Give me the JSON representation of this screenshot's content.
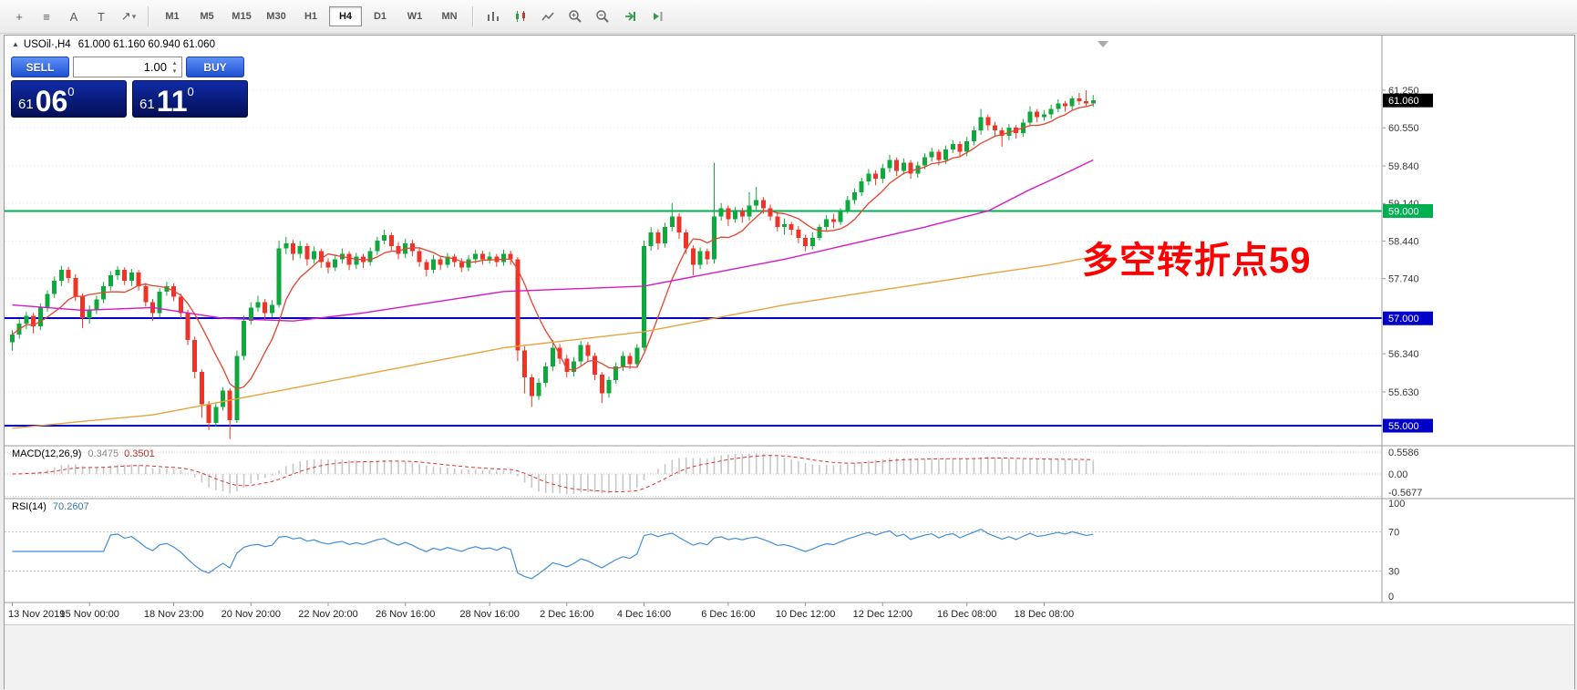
{
  "toolbar": {
    "left_icons": [
      {
        "name": "draw-tools-icon",
        "glyph": "+"
      },
      {
        "name": "objects-list-icon",
        "glyph": "≡"
      },
      {
        "name": "text-tool-icon",
        "glyph": "A"
      },
      {
        "name": "label-tool-icon",
        "glyph": "T"
      },
      {
        "name": "arrow-tools-icon",
        "glyph": "↗"
      }
    ],
    "timeframes": [
      {
        "label": "M1"
      },
      {
        "label": "M5"
      },
      {
        "label": "M15"
      },
      {
        "label": "M30"
      },
      {
        "label": "H1"
      },
      {
        "label": "H4",
        "active": true
      },
      {
        "label": "D1"
      },
      {
        "label": "W1"
      },
      {
        "label": "MN"
      }
    ],
    "right_icons": [
      "bar-chart",
      "candlesticks",
      "line-chart",
      "zoom-in",
      "zoom-out",
      "auto-scroll",
      "chart-shift"
    ]
  },
  "symbol_header": {
    "marker": "▲",
    "symbol": "USOil·,H4",
    "ohlc": "61.000 61.160 60.940 61.060"
  },
  "one_click": {
    "sell_label": "SELL",
    "buy_label": "BUY",
    "volume": "1.00",
    "bid": {
      "int": "61",
      "pips": "06",
      "frac": "0"
    },
    "ask": {
      "int": "61",
      "pips": "11",
      "frac": "0"
    }
  },
  "colors": {
    "bull": "#0fa83c",
    "bear": "#ee3426",
    "ma_fast": "#e8432d",
    "ma_mid": "#d519c4",
    "ma_slow": "#e8a33d",
    "level_green": "#00b050",
    "level_blue": "#0000c8",
    "current_bg": "#000000",
    "macd_hist": "#c8c8c8",
    "macd_signal": "#e03030",
    "rsi_line": "#3f8edc",
    "annotation": "#ff0000",
    "grid": "#e4e4e4",
    "axis_text": "#3a3a3a"
  },
  "chart_data": {
    "type": "candlestick",
    "symbol": "USOil",
    "timeframe": "H4",
    "ohlc_current": {
      "open": "61.000",
      "high": "61.160",
      "low": "60.940",
      "close": "61.060"
    },
    "annotation": {
      "text": "多空转折点59"
    },
    "current_price": {
      "value": 61.06,
      "label": "61.060"
    },
    "levels": [
      {
        "price": 59.0,
        "label": "59.000",
        "type": "green"
      },
      {
        "price": 57.0,
        "label": "57.000",
        "type": "blue"
      },
      {
        "price": 55.0,
        "label": "55.000",
        "type": "blue"
      }
    ],
    "price_ticks": [
      {
        "v": 61.25,
        "label": "61.250"
      },
      {
        "v": 60.55,
        "label": "60.550"
      },
      {
        "v": 59.84,
        "label": "59.840"
      },
      {
        "v": 59.14,
        "label": "59.140"
      },
      {
        "v": 58.44,
        "label": "58.440"
      },
      {
        "v": 57.74,
        "label": "57.740"
      },
      {
        "v": 56.34,
        "label": "56.340"
      },
      {
        "v": 55.63,
        "label": "55.630"
      }
    ],
    "time_labels": [
      {
        "i": 0,
        "label": "13 Nov 2019"
      },
      {
        "i": 11,
        "label": "15 Nov 00:00"
      },
      {
        "i": 23,
        "label": "18 Nov 23:00"
      },
      {
        "i": 34,
        "label": "20 Nov 20:00"
      },
      {
        "i": 45,
        "label": "22 Nov 20:00"
      },
      {
        "i": 56,
        "label": "26 Nov 16:00"
      },
      {
        "i": 68,
        "label": "28 Nov 16:00"
      },
      {
        "i": 79,
        "label": "2 Dec 16:00"
      },
      {
        "i": 90,
        "label": "4 Dec 16:00"
      },
      {
        "i": 102,
        "label": "6 Dec 16:00"
      },
      {
        "i": 113,
        "label": "10 Dec 12:00"
      },
      {
        "i": 124,
        "label": "12 Dec 12:00"
      },
      {
        "i": 136,
        "label": "16 Dec 08:00"
      },
      {
        "i": 147,
        "label": "18 Dec 08:00"
      }
    ],
    "moving_averages": {
      "fast": {
        "type": "SMA",
        "period": 8
      },
      "mid": {
        "type": "waypoints",
        "waypoints": [
          [
            0,
            57.25
          ],
          [
            10,
            57.15
          ],
          [
            20,
            57.2
          ],
          [
            30,
            57.0
          ],
          [
            40,
            56.95
          ],
          [
            50,
            57.1
          ],
          [
            60,
            57.3
          ],
          [
            70,
            57.5
          ],
          [
            80,
            57.55
          ],
          [
            90,
            57.6
          ],
          [
            100,
            57.85
          ],
          [
            110,
            58.1
          ],
          [
            120,
            58.4
          ],
          [
            130,
            58.7
          ],
          [
            139,
            59.0
          ],
          [
            145,
            59.4
          ],
          [
            150,
            59.7
          ],
          [
            154,
            59.95
          ]
        ]
      },
      "slow": {
        "type": "waypoints",
        "waypoints": [
          [
            0,
            54.95
          ],
          [
            10,
            55.08
          ],
          [
            20,
            55.2
          ],
          [
            30,
            55.45
          ],
          [
            40,
            55.7
          ],
          [
            50,
            55.95
          ],
          [
            60,
            56.2
          ],
          [
            70,
            56.45
          ],
          [
            80,
            56.6
          ],
          [
            90,
            56.75
          ],
          [
            100,
            57.0
          ],
          [
            110,
            57.25
          ],
          [
            120,
            57.45
          ],
          [
            130,
            57.65
          ],
          [
            140,
            57.85
          ],
          [
            148,
            58.0
          ],
          [
            154,
            58.15
          ]
        ]
      }
    },
    "indicators": {
      "macd": {
        "name": "MACD(12,26,9)",
        "fast": 12,
        "slow": 26,
        "signal": 9,
        "value_main": "0.3475",
        "value_signal": "0.3501",
        "axis": [
          "0.5586",
          "0.00",
          "-0.5677"
        ],
        "axis_values": [
          0.5586,
          0,
          -0.5677
        ]
      },
      "rsi": {
        "name": "RSI(14)",
        "period": 14,
        "value": "70.2607",
        "axis": [
          "100",
          "70",
          "30",
          "0"
        ],
        "levels": [
          70,
          30
        ]
      }
    },
    "candles": [
      [
        56.55,
        56.78,
        56.4,
        56.7
      ],
      [
        56.7,
        56.98,
        56.62,
        56.9
      ],
      [
        56.9,
        57.12,
        56.8,
        57.05
      ],
      [
        57.05,
        57.1,
        56.72,
        56.85
      ],
      [
        56.85,
        57.28,
        56.78,
        57.2
      ],
      [
        57.2,
        57.52,
        57.12,
        57.45
      ],
      [
        57.45,
        57.78,
        57.38,
        57.7
      ],
      [
        57.7,
        57.98,
        57.6,
        57.9
      ],
      [
        57.9,
        57.96,
        57.66,
        57.75
      ],
      [
        57.75,
        57.82,
        57.32,
        57.4
      ],
      [
        57.4,
        57.46,
        56.82,
        57.0
      ],
      [
        57.0,
        57.24,
        56.9,
        57.15
      ],
      [
        57.15,
        57.42,
        57.08,
        57.35
      ],
      [
        57.35,
        57.68,
        57.28,
        57.6
      ],
      [
        57.6,
        57.88,
        57.52,
        57.8
      ],
      [
        57.8,
        57.97,
        57.72,
        57.9
      ],
      [
        57.9,
        57.95,
        57.62,
        57.7
      ],
      [
        57.7,
        57.92,
        57.6,
        57.85
      ],
      [
        57.85,
        57.9,
        57.52,
        57.6
      ],
      [
        57.6,
        57.66,
        57.22,
        57.3
      ],
      [
        57.3,
        57.36,
        56.95,
        57.1
      ],
      [
        57.1,
        57.56,
        57.02,
        57.5
      ],
      [
        57.5,
        57.68,
        57.42,
        57.6
      ],
      [
        57.6,
        57.65,
        57.32,
        57.4
      ],
      [
        57.4,
        57.46,
        57.0,
        57.1
      ],
      [
        57.1,
        57.16,
        56.5,
        56.6
      ],
      [
        56.6,
        56.66,
        55.88,
        56.0
      ],
      [
        56.0,
        56.05,
        55.15,
        55.4
      ],
      [
        55.4,
        55.46,
        54.92,
        55.05
      ],
      [
        55.05,
        55.42,
        54.98,
        55.35
      ],
      [
        55.35,
        55.72,
        55.28,
        55.65
      ],
      [
        55.65,
        55.7,
        54.75,
        55.1
      ],
      [
        55.1,
        56.4,
        55.05,
        56.3
      ],
      [
        56.3,
        57.05,
        56.22,
        56.95
      ],
      [
        56.95,
        57.3,
        56.88,
        57.2
      ],
      [
        57.2,
        57.42,
        57.12,
        57.3
      ],
      [
        57.3,
        57.36,
        56.98,
        57.1
      ],
      [
        57.1,
        57.34,
        57.02,
        57.25
      ],
      [
        57.25,
        58.45,
        57.2,
        58.3
      ],
      [
        58.3,
        58.52,
        58.2,
        58.4
      ],
      [
        58.4,
        58.46,
        58.08,
        58.2
      ],
      [
        58.2,
        58.44,
        58.12,
        58.35
      ],
      [
        58.35,
        58.4,
        57.98,
        58.1
      ],
      [
        58.1,
        58.34,
        58.02,
        58.25
      ],
      [
        58.25,
        58.3,
        57.94,
        58.05
      ],
      [
        58.05,
        58.12,
        57.84,
        57.95
      ],
      [
        57.95,
        58.18,
        57.88,
        58.1
      ],
      [
        58.1,
        58.3,
        58.02,
        58.2
      ],
      [
        58.2,
        58.25,
        57.9,
        58.0
      ],
      [
        58.0,
        58.22,
        57.92,
        58.15
      ],
      [
        58.15,
        58.2,
        57.94,
        58.05
      ],
      [
        58.05,
        58.32,
        57.98,
        58.25
      ],
      [
        58.25,
        58.52,
        58.18,
        58.45
      ],
      [
        58.45,
        58.65,
        58.38,
        58.55
      ],
      [
        58.55,
        58.6,
        58.26,
        58.35
      ],
      [
        58.35,
        58.42,
        58.1,
        58.2
      ],
      [
        58.2,
        58.48,
        58.12,
        58.4
      ],
      [
        58.4,
        58.46,
        58.16,
        58.25
      ],
      [
        58.25,
        58.3,
        57.96,
        58.05
      ],
      [
        58.05,
        58.1,
        57.78,
        57.9
      ],
      [
        57.9,
        58.18,
        57.84,
        58.1
      ],
      [
        58.1,
        58.16,
        57.9,
        58.0
      ],
      [
        58.0,
        58.22,
        57.94,
        58.15
      ],
      [
        58.15,
        58.2,
        57.96,
        58.05
      ],
      [
        58.05,
        58.12,
        57.86,
        57.95
      ],
      [
        57.95,
        58.18,
        57.88,
        58.1
      ],
      [
        58.1,
        58.28,
        58.02,
        58.2
      ],
      [
        58.2,
        58.26,
        58.0,
        58.1
      ],
      [
        58.1,
        58.24,
        58.02,
        58.15
      ],
      [
        58.15,
        58.2,
        57.96,
        58.05
      ],
      [
        58.05,
        58.28,
        57.98,
        58.2
      ],
      [
        58.2,
        58.26,
        58.0,
        58.1
      ],
      [
        58.1,
        58.14,
        56.2,
        56.4
      ],
      [
        56.4,
        56.48,
        55.6,
        55.9
      ],
      [
        55.9,
        55.96,
        55.35,
        55.55
      ],
      [
        55.55,
        55.88,
        55.48,
        55.8
      ],
      [
        55.8,
        56.18,
        55.72,
        56.1
      ],
      [
        56.1,
        56.6,
        56.02,
        56.45
      ],
      [
        56.45,
        56.52,
        56.15,
        56.25
      ],
      [
        56.25,
        56.32,
        55.9,
        56.0
      ],
      [
        56.0,
        56.28,
        55.92,
        56.2
      ],
      [
        56.2,
        56.58,
        56.12,
        56.5
      ],
      [
        56.5,
        56.56,
        56.2,
        56.3
      ],
      [
        56.3,
        56.36,
        55.85,
        55.95
      ],
      [
        55.95,
        56.0,
        55.42,
        55.6
      ],
      [
        55.6,
        55.92,
        55.52,
        55.85
      ],
      [
        55.85,
        56.18,
        55.78,
        56.1
      ],
      [
        56.1,
        56.38,
        56.02,
        56.3
      ],
      [
        56.3,
        56.36,
        56.05,
        56.15
      ],
      [
        56.15,
        56.52,
        56.08,
        56.45
      ],
      [
        56.45,
        58.45,
        56.4,
        58.35
      ],
      [
        58.35,
        58.7,
        58.26,
        58.6
      ],
      [
        58.6,
        58.66,
        58.28,
        58.4
      ],
      [
        58.4,
        58.78,
        58.32,
        58.7
      ],
      [
        58.7,
        59.15,
        58.62,
        58.9
      ],
      [
        58.9,
        58.96,
        58.48,
        58.6
      ],
      [
        58.6,
        58.66,
        58.2,
        58.3
      ],
      [
        58.3,
        58.36,
        57.8,
        58.0
      ],
      [
        58.0,
        58.32,
        57.92,
        58.25
      ],
      [
        58.25,
        58.3,
        58.0,
        58.1
      ],
      [
        58.1,
        59.9,
        58.02,
        58.9
      ],
      [
        58.9,
        59.15,
        58.82,
        59.05
      ],
      [
        59.05,
        59.1,
        58.72,
        58.85
      ],
      [
        58.85,
        59.08,
        58.78,
        59.0
      ],
      [
        59.0,
        59.06,
        58.78,
        58.9
      ],
      [
        58.9,
        59.35,
        58.82,
        59.1
      ],
      [
        59.1,
        59.45,
        59.02,
        59.2
      ],
      [
        59.2,
        59.26,
        58.95,
        59.05
      ],
      [
        59.05,
        59.12,
        58.82,
        58.9
      ],
      [
        58.9,
        58.96,
        58.62,
        58.7
      ],
      [
        58.7,
        58.86,
        58.56,
        58.75
      ],
      [
        58.75,
        58.8,
        58.55,
        58.65
      ],
      [
        58.65,
        58.72,
        58.4,
        58.5
      ],
      [
        58.5,
        58.56,
        58.25,
        58.35
      ],
      [
        58.35,
        58.6,
        58.28,
        58.5
      ],
      [
        58.5,
        58.75,
        58.45,
        58.7
      ],
      [
        58.7,
        58.92,
        58.62,
        58.85
      ],
      [
        58.85,
        58.95,
        58.68,
        58.8
      ],
      [
        58.8,
        59.05,
        58.74,
        59.0
      ],
      [
        59.0,
        59.28,
        58.95,
        59.2
      ],
      [
        59.2,
        59.42,
        59.12,
        59.35
      ],
      [
        59.35,
        59.62,
        59.28,
        59.55
      ],
      [
        59.55,
        59.78,
        59.48,
        59.7
      ],
      [
        59.7,
        59.76,
        59.48,
        59.6
      ],
      [
        59.6,
        59.88,
        59.52,
        59.8
      ],
      [
        59.8,
        60.05,
        59.72,
        59.95
      ],
      [
        59.95,
        60.0,
        59.65,
        59.75
      ],
      [
        59.75,
        59.98,
        59.68,
        59.9
      ],
      [
        59.9,
        59.95,
        59.6,
        59.7
      ],
      [
        59.7,
        59.92,
        59.62,
        59.85
      ],
      [
        59.85,
        60.08,
        59.78,
        60.0
      ],
      [
        60.0,
        60.18,
        59.92,
        60.1
      ],
      [
        60.1,
        60.15,
        59.85,
        59.95
      ],
      [
        59.95,
        60.22,
        59.88,
        60.15
      ],
      [
        60.15,
        60.32,
        60.08,
        60.25
      ],
      [
        60.25,
        60.3,
        60.0,
        60.1
      ],
      [
        60.1,
        60.38,
        60.02,
        60.3
      ],
      [
        60.3,
        60.58,
        60.22,
        60.5
      ],
      [
        60.5,
        60.9,
        60.42,
        60.75
      ],
      [
        60.75,
        60.8,
        60.5,
        60.6
      ],
      [
        60.6,
        60.66,
        60.4,
        60.5
      ],
      [
        60.5,
        60.56,
        60.2,
        60.4
      ],
      [
        60.4,
        60.62,
        60.32,
        60.55
      ],
      [
        60.55,
        60.6,
        60.35,
        60.45
      ],
      [
        60.45,
        60.72,
        60.38,
        60.65
      ],
      [
        60.65,
        60.95,
        60.58,
        60.85
      ],
      [
        60.85,
        60.9,
        60.65,
        60.75
      ],
      [
        60.75,
        60.88,
        60.68,
        60.8
      ],
      [
        60.8,
        60.98,
        60.72,
        60.9
      ],
      [
        60.9,
        61.08,
        60.84,
        61.0
      ],
      [
        61.0,
        61.05,
        60.85,
        60.95
      ],
      [
        60.95,
        61.14,
        60.88,
        61.1
      ],
      [
        61.1,
        61.2,
        60.98,
        61.05
      ],
      [
        61.05,
        61.25,
        60.95,
        61.0
      ],
      [
        61.0,
        61.16,
        60.94,
        61.06
      ]
    ]
  }
}
